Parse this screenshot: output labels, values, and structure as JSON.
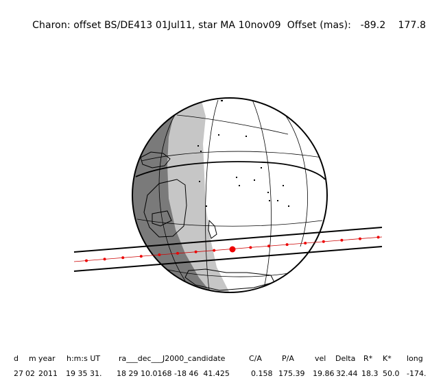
{
  "header": {
    "title": "Charon: offset BS/DE413 01Jul11, star MA 10nov09  Offset (mas):",
    "offset_x": "-89.2",
    "offset_y": "177.8"
  },
  "colors": {
    "night": "#7a7a7a",
    "twilight": "#c6c6c6",
    "day": "#ffffff",
    "track": "#000000",
    "centerline": "#cc0000",
    "dots": "#ee0000"
  },
  "table": {
    "headers": [
      "d",
      "m",
      "year",
      "h:m:s UT",
      "ra___dec___J2000_candidate",
      "C/A",
      "P/A",
      "vel",
      "Delta",
      "R*",
      "K*",
      "long"
    ],
    "values": [
      "27",
      "02",
      "2011",
      "19 35 31.",
      "18 29 10.0168 -18 46  41.425",
      "0.158",
      "175.39",
      "19.86",
      "32.44",
      "18.3",
      "50.0",
      "-174."
    ]
  }
}
